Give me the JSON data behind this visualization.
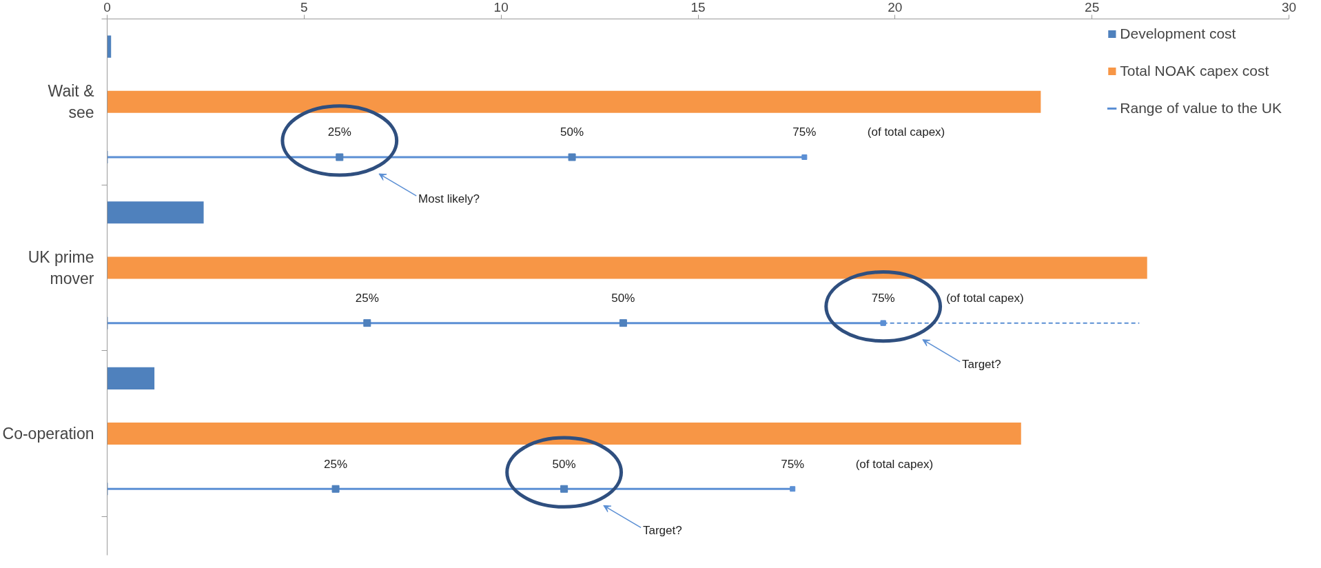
{
  "chart_data": {
    "type": "bar",
    "orientation": "horizontal",
    "categories": [
      null,
      "Wait & see",
      null,
      null,
      "UK prime mover",
      null,
      null,
      "Co-operation",
      null
    ],
    "xlim": [
      0,
      30
    ],
    "xticks": [
      0,
      5,
      10,
      15,
      20,
      25,
      30
    ],
    "grid": false,
    "legend": "top right",
    "series": [
      {
        "name": "Development cost",
        "color": "#4f81bd",
        "values": [
          0.1,
          null,
          null,
          2.45,
          null,
          null,
          1.2,
          null,
          null
        ]
      },
      {
        "name": "Total NOAK capex cost",
        "color": "#f79646",
        "values": [
          null,
          23.7,
          null,
          null,
          26.4,
          null,
          null,
          23.2,
          null
        ]
      },
      {
        "name": "Range of value to the UK",
        "type": "scatter",
        "marker": "square",
        "color": "#5b8fd4",
        "values": [
          null,
          null,
          17.7,
          null,
          null,
          19.7,
          null,
          null,
          17.4
        ],
        "errors": [
          null,
          null,
          [
            0,
            17.7
          ],
          null,
          null,
          [
            0,
            19.7
          ],
          null,
          null,
          [
            0,
            17.4
          ]
        ]
      },
      {
        "type": "scatter",
        "marker": "square",
        "color": "#4f81bd",
        "values": [
          null,
          null,
          5.9,
          null,
          null,
          6.6,
          null,
          null,
          5.8
        ]
      },
      {
        "type": "scatter",
        "marker": "square",
        "color": "#4f81bd",
        "values": [
          null,
          null,
          11.8,
          null,
          null,
          13.1,
          null,
          null,
          11.6
        ]
      },
      {
        "type": "scatter",
        "marker": "square",
        "line_style": "dashed",
        "color": "#5b8fd4",
        "values": [
          null,
          null,
          null,
          null,
          null,
          19.7,
          null,
          null,
          null
        ],
        "errors": [
          null,
          null,
          null,
          null,
          null,
          [
            19.7,
            26.2
          ],
          null,
          null,
          null
        ]
      }
    ],
    "annotations": [
      "25%",
      "25%",
      "25%",
      "50%",
      "50%",
      "50%",
      "75%",
      "75%",
      "75%",
      "Most likely?",
      "Target?",
      "Target?",
      "(of total capex)",
      "(of total capex)",
      "(of total capex)"
    ]
  }
}
